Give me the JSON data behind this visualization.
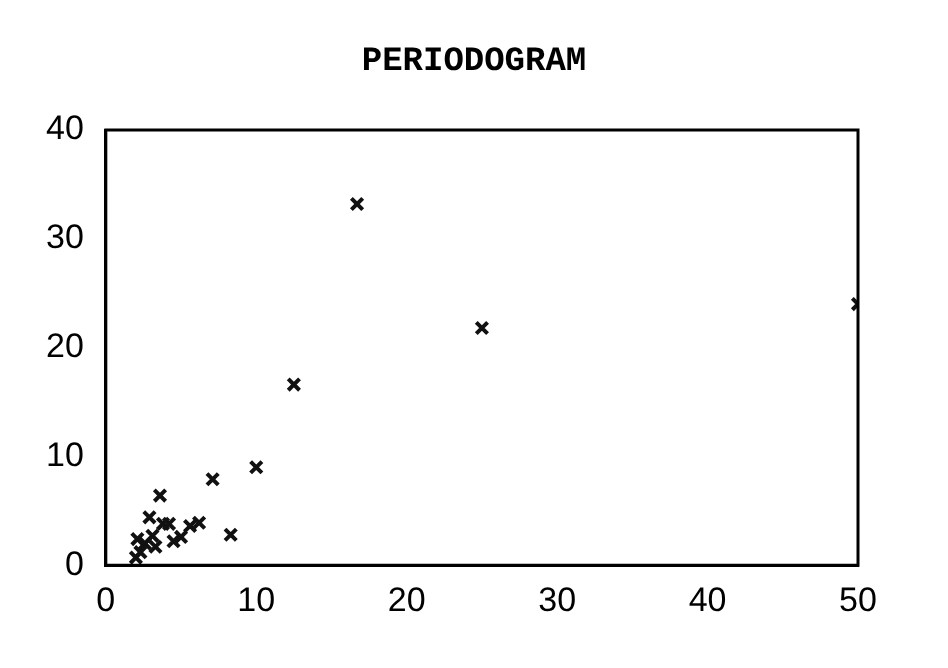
{
  "chart_data": {
    "type": "scatter",
    "title": "PERIODOGRAM",
    "x": [
      50,
      25,
      16.7,
      12.5,
      10,
      8.3,
      7.1,
      6.2,
      5.6,
      5,
      4.5,
      4.2,
      3.8,
      3.6,
      3.3,
      3.1,
      2.9,
      2.6,
      2.1,
      2,
      2.3
    ],
    "values": [
      24,
      21.8,
      33.2,
      16.6,
      9,
      2.8,
      7.9,
      3.9,
      3.6,
      2.6,
      2.2,
      3.8,
      3.8,
      6.4,
      1.7,
      2.7,
      4.4,
      2,
      2.4,
      0.7,
      1.2
    ],
    "color": "#111111",
    "marker": "cross",
    "xlim": [
      0,
      50
    ],
    "xticks": [
      0,
      10,
      20,
      30,
      40,
      50
    ],
    "ylim": [
      0,
      40
    ],
    "yticks": [
      0,
      10,
      20,
      30,
      40
    ],
    "grid": false,
    "legend": false
  }
}
